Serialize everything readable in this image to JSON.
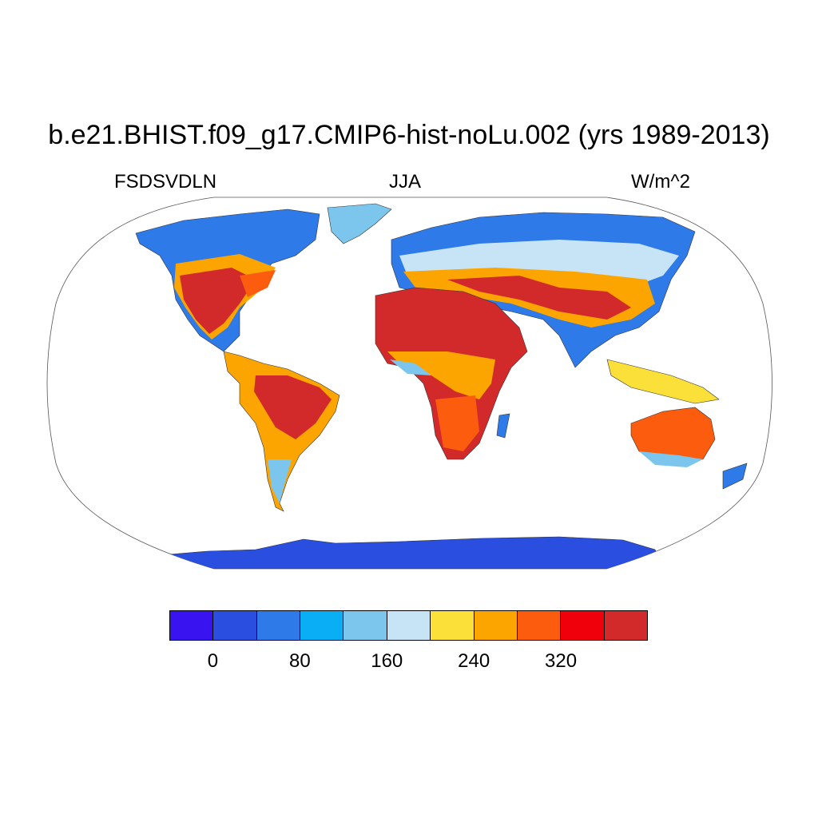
{
  "title": "b.e21.BHIST.f09_g17.CMIP6-hist-noLu.002 (yrs 1989-2013)",
  "variable": "FSDSVDLN",
  "season": "JJA",
  "units": "W/m^2",
  "colorbar": {
    "colors": [
      "#3a14f0",
      "#2a4ee0",
      "#2d7ae8",
      "#0aaef5",
      "#7cc6ee",
      "#c7e4f6",
      "#fbe03a",
      "#fca500",
      "#fc5c0e",
      "#f0000a",
      "#d22a2a"
    ],
    "tick_labels": [
      "0",
      "80",
      "160",
      "240",
      "320"
    ],
    "tick_values": [
      0,
      80,
      160,
      240,
      320
    ],
    "levels": [
      0,
      40,
      80,
      120,
      160,
      200,
      240,
      280,
      320,
      360
    ]
  },
  "map": {
    "projection": "Robinson",
    "land_fill_example": "FSDSVDLN JJA climatology"
  }
}
